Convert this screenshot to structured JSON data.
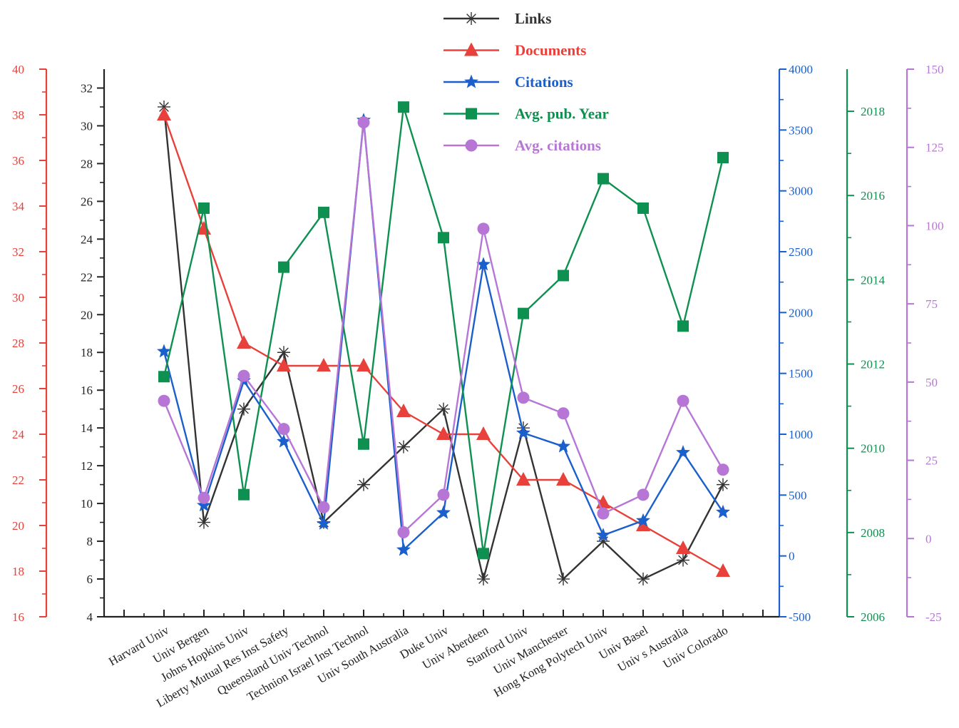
{
  "chart_data": {
    "type": "line",
    "title": "",
    "xlabel": "",
    "categories": [
      "Harvard Univ",
      "Univ Bergen",
      "Johns Hopkins Univ",
      "Liberty Mutual Res Inst Safety",
      "Queensland Univ Technol",
      "Technion Israel Inst Technol",
      "Univ South Australia",
      "Duke Univ",
      "Univ Aberdeen",
      "Stanford Univ",
      "Univ Manchester",
      "Hong Kong Polytech Univ",
      "Univ Basel",
      "Univ s Australia",
      "Univ Colorado"
    ],
    "legend_position": "top-center",
    "grid": false,
    "series": [
      {
        "name": "Links",
        "axis": "links",
        "color": "#333333",
        "marker": "asterisk",
        "values": [
          31,
          9,
          15,
          18,
          9,
          11,
          13,
          15,
          6,
          14,
          6,
          8,
          6,
          7,
          11
        ]
      },
      {
        "name": "Documents",
        "axis": "documents",
        "color": "#e8403a",
        "marker": "triangle",
        "values": [
          38,
          33,
          28,
          27,
          27,
          27,
          25,
          24,
          24,
          22,
          22,
          21,
          20,
          19,
          18
        ]
      },
      {
        "name": "Citations",
        "axis": "citations",
        "color": "#1a5fcc",
        "marker": "star",
        "values": [
          1680,
          415,
          1440,
          940,
          265,
          3580,
          50,
          355,
          2395,
          1010,
          900,
          170,
          290,
          850,
          360
        ]
      },
      {
        "name": "Avg. pub. Year",
        "axis": "year",
        "color": "#0d9050",
        "marker": "square",
        "values": [
          2011.7,
          2015.7,
          2008.9,
          2014.3,
          2015.6,
          2010.1,
          2018.1,
          2015.0,
          2007.5,
          2013.2,
          2014.1,
          2016.4,
          2015.7,
          2012.9,
          2016.9
        ]
      },
      {
        "name": "Avg. citations",
        "axis": "avgcit",
        "color": "#b776d6",
        "marker": "circle",
        "values": [
          44,
          13,
          52,
          35,
          10,
          133,
          2,
          14,
          99,
          45,
          40,
          8,
          14,
          44,
          22
        ]
      }
    ],
    "axes": [
      {
        "id": "documents",
        "side": "left",
        "color": "#e8403a",
        "ylim": [
          16,
          40
        ],
        "ticks": [
          "16",
          "18",
          "20",
          "22",
          "24",
          "26",
          "28",
          "30",
          "32",
          "34",
          "36",
          "38",
          "40"
        ]
      },
      {
        "id": "links",
        "side": "left",
        "color": "#222222",
        "ylim": [
          4,
          33
        ],
        "ticks": [
          "4",
          "6",
          "8",
          "10",
          "12",
          "14",
          "16",
          "18",
          "20",
          "22",
          "24",
          "26",
          "28",
          "30",
          "32"
        ]
      },
      {
        "id": "citations",
        "side": "right",
        "color": "#1a5fcc",
        "ylim": [
          -500,
          4000
        ],
        "ticks": [
          "-500",
          "0",
          "500",
          "1000",
          "1500",
          "2000",
          "2500",
          "3000",
          "3500",
          "4000"
        ]
      },
      {
        "id": "year",
        "side": "right",
        "color": "#0d9050",
        "ylim": [
          2006,
          2019
        ],
        "ticks": [
          "2006",
          "2008",
          "2010",
          "2012",
          "2014",
          "2016",
          "2018"
        ]
      },
      {
        "id": "avgcit",
        "side": "right",
        "color": "#b776d6",
        "ylim": [
          -25,
          150
        ],
        "ticks": [
          "-25",
          "0",
          "25",
          "50",
          "75",
          "100",
          "125",
          "150"
        ]
      }
    ]
  }
}
